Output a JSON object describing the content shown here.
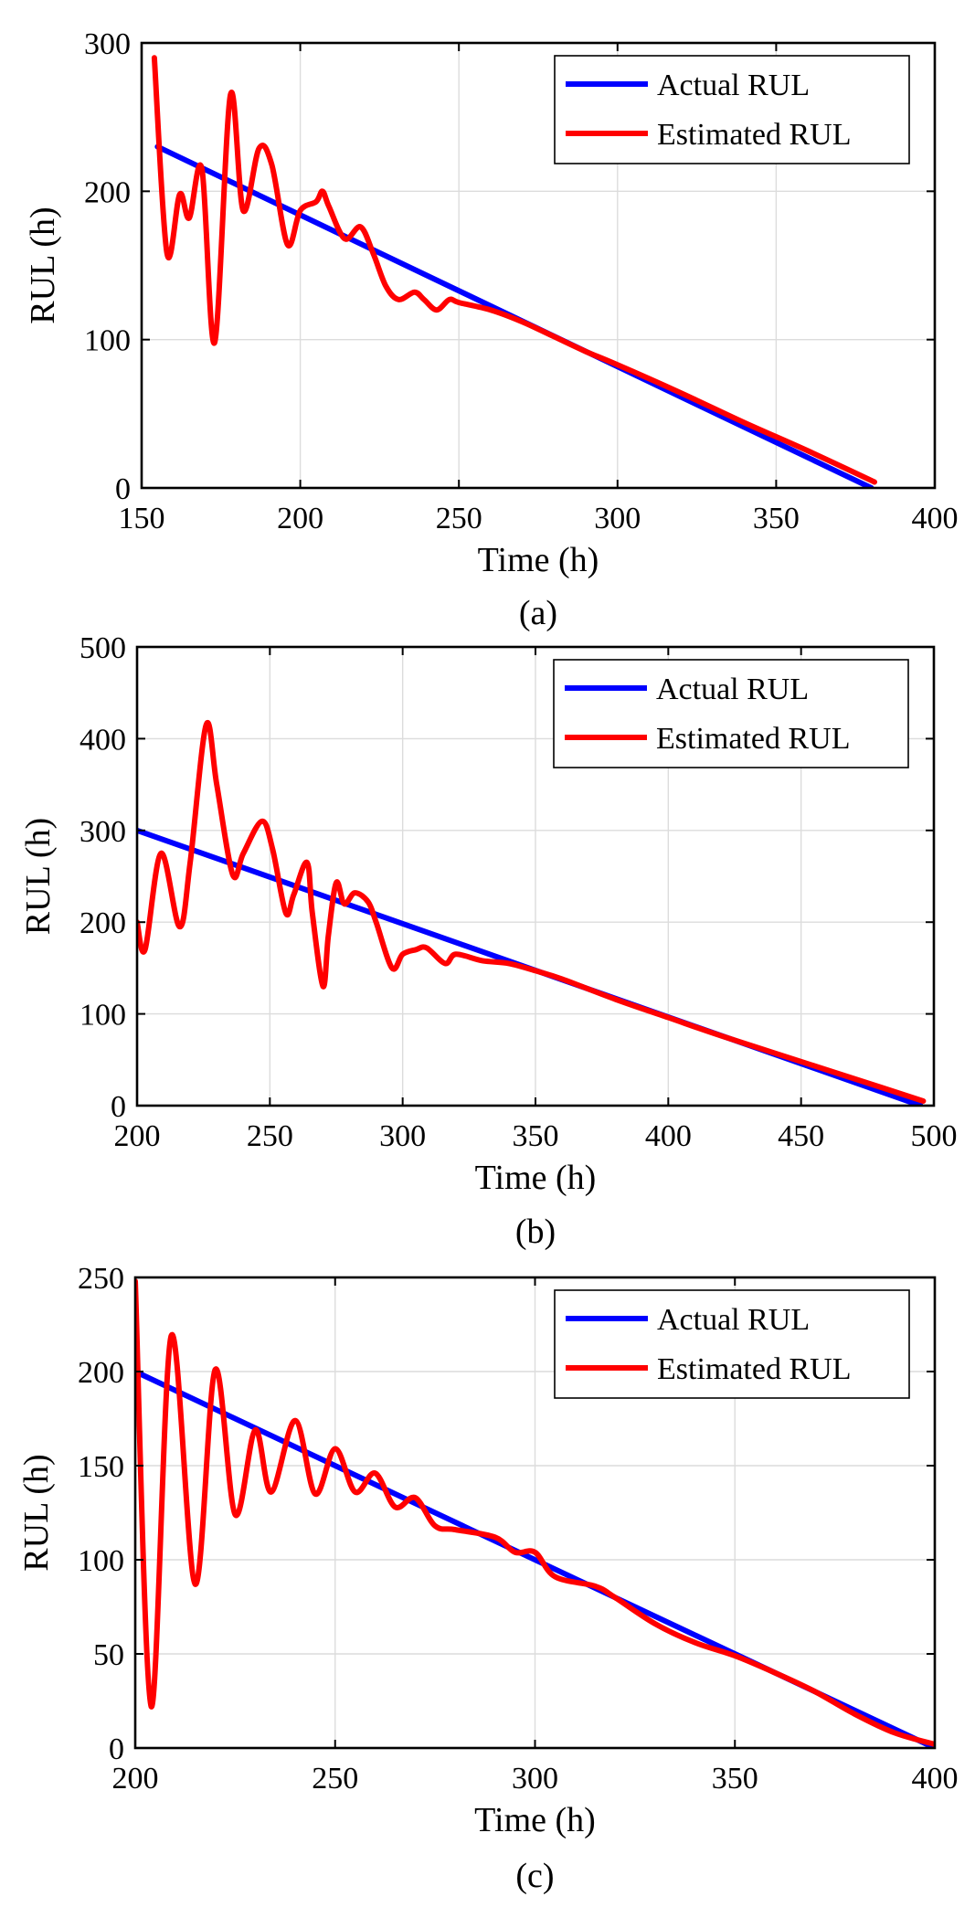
{
  "chart_data": [
    {
      "type": "line",
      "caption": "(a)",
      "xlabel": "Time (h)",
      "ylabel": "RUL (h)",
      "xlim": [
        150,
        400
      ],
      "ylim": [
        0,
        300
      ],
      "xticks": [
        150,
        200,
        250,
        300,
        350,
        400
      ],
      "yticks": [
        0,
        100,
        200,
        300
      ],
      "grid": true,
      "legend": {
        "position": "top-right",
        "entries": [
          "Actual RUL",
          "Estimated RUL"
        ]
      },
      "series": [
        {
          "name": "Actual RUL",
          "color": "#0000ff",
          "x": [
            155,
            380
          ],
          "y": [
            230,
            0
          ]
        },
        {
          "name": "Estimated RUL",
          "color": "#ff0000",
          "x": [
            154,
            158,
            162,
            165,
            169,
            173,
            178,
            182,
            187,
            191,
            196,
            200,
            205,
            207,
            209,
            214,
            219,
            223,
            227,
            231,
            236,
            239,
            243,
            247,
            250,
            260,
            270,
            280,
            290,
            300,
            320,
            340,
            360,
            381
          ],
          "y": [
            290,
            158,
            198,
            182,
            215,
            98,
            265,
            187,
            229,
            218,
            164,
            187,
            193,
            200,
            190,
            168,
            176,
            158,
            136,
            127,
            132,
            127,
            120,
            127,
            125,
            120,
            112,
            102,
            92,
            83,
            64,
            44,
            25,
            4
          ]
        }
      ]
    },
    {
      "type": "line",
      "caption": "(b)",
      "xlabel": "Time (h)",
      "ylabel": "RUL (h)",
      "xlim": [
        200,
        500
      ],
      "ylim": [
        0,
        500
      ],
      "xticks": [
        200,
        250,
        300,
        350,
        400,
        450,
        500
      ],
      "yticks": [
        0,
        100,
        200,
        300,
        400,
        500
      ],
      "grid": true,
      "legend": {
        "position": "top-right",
        "entries": [
          "Actual RUL",
          "Estimated RUL"
        ]
      },
      "series": [
        {
          "name": "Actual RUL",
          "color": "#0000ff",
          "x": [
            200,
            495
          ],
          "y": [
            300,
            0
          ]
        },
        {
          "name": "Estimated RUL",
          "color": "#ff0000",
          "x": [
            200,
            203,
            209,
            216,
            220,
            226,
            230,
            236,
            240,
            247,
            251,
            256,
            259,
            264,
            266,
            270,
            272,
            275,
            278,
            282,
            287,
            290,
            296,
            300,
            305,
            309,
            316,
            320,
            330,
            340,
            350,
            360,
            380,
            400,
            420,
            450,
            480,
            496
          ],
          "y": [
            200,
            170,
            275,
            195,
            265,
            415,
            350,
            252,
            275,
            310,
            280,
            210,
            230,
            265,
            210,
            130,
            185,
            243,
            220,
            232,
            222,
            200,
            150,
            165,
            170,
            172,
            155,
            165,
            158,
            155,
            147,
            138,
            116,
            96,
            76,
            48,
            20,
            5
          ]
        }
      ]
    },
    {
      "type": "line",
      "caption": "(c)",
      "xlabel": "Time (h)",
      "ylabel": "RUL (h)",
      "xlim": [
        200,
        400
      ],
      "ylim": [
        0,
        250
      ],
      "xticks": [
        200,
        250,
        300,
        350,
        400
      ],
      "yticks": [
        0,
        50,
        100,
        150,
        200,
        250
      ],
      "grid": true,
      "legend": {
        "position": "top-right",
        "entries": [
          "Actual RUL",
          "Estimated RUL"
        ]
      },
      "series": [
        {
          "name": "Actual RUL",
          "color": "#0000ff",
          "x": [
            200,
            400
          ],
          "y": [
            200,
            0
          ]
        },
        {
          "name": "Estimated RUL",
          "color": "#ff0000",
          "x": [
            200,
            204,
            209,
            215,
            220,
            225,
            230,
            234,
            240,
            245,
            250,
            255,
            260,
            265,
            270,
            275,
            280,
            290,
            295,
            300,
            305,
            315,
            320,
            330,
            340,
            350,
            360,
            370,
            380,
            390,
            400
          ],
          "y": [
            248,
            22,
            219,
            87,
            201,
            124,
            169,
            136,
            174,
            135,
            159,
            136,
            146,
            128,
            133,
            118,
            116,
            112,
            104,
            104,
            91,
            86,
            80,
            66,
            56,
            49,
            40,
            30,
            18,
            8,
            2
          ]
        }
      ]
    }
  ]
}
